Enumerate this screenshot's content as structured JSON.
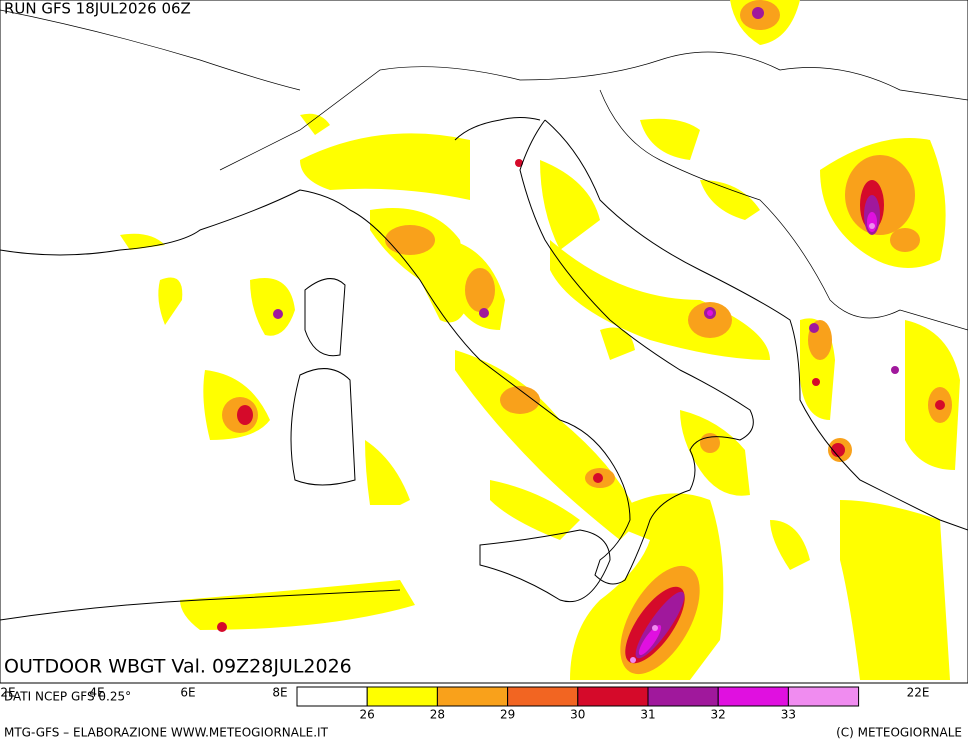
{
  "header": {
    "run": "RUN GFS 18JUL2026 06Z"
  },
  "map": {
    "field_title": "OUTDOOR WBGT Val. 09Z28JUL2026",
    "source": "DATI NCEP GFS 0.25°",
    "longitude_labels": [
      "2E",
      "4E",
      "6E",
      "8E",
      "22E"
    ]
  },
  "legend": {
    "colors": [
      "#ffffff",
      "#ffff00",
      "#f9a11b",
      "#f26522",
      "#d50a2a",
      "#a0189c",
      "#e010e0",
      "#f08cf0"
    ],
    "ticks": [
      26,
      28,
      29,
      30,
      31,
      32,
      33
    ]
  },
  "footer": {
    "left": "MTG-GFS – ELABORAZIONE WWW.METEOGIORNALE.IT",
    "right": "(C) METEOGIORNALE"
  }
}
